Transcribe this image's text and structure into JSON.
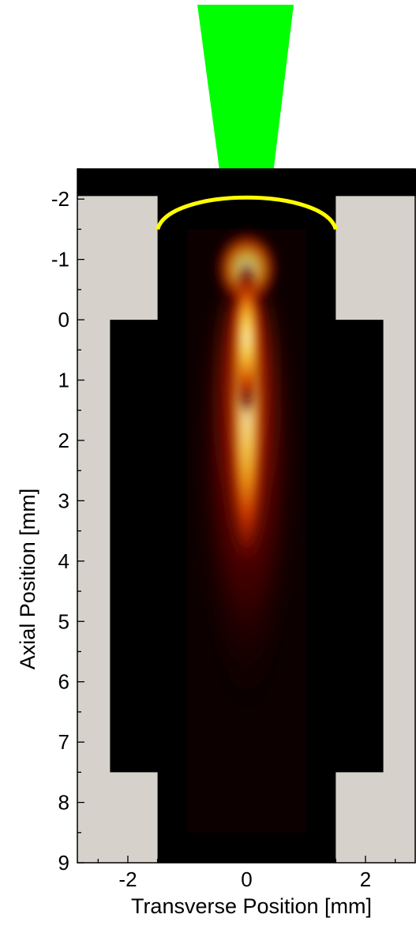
{
  "chart_data": {
    "type": "heatmap",
    "title": "",
    "xlabel": "Transverse Position [mm]",
    "ylabel": "Axial Position [mm]",
    "xlim": [
      -2.85,
      2.85
    ],
    "ylim": [
      9,
      -2.5
    ],
    "y_axis_inverted": true,
    "x_ticks": [
      -2,
      0,
      2
    ],
    "y_ticks": [
      -2,
      -1,
      0,
      1,
      2,
      3,
      4,
      5,
      6,
      7,
      8,
      9
    ],
    "colormap": "black-red-yellow-white",
    "grid": false,
    "legend": "none",
    "colors": {
      "background": "#000000",
      "channel_wall": "#d6d2cb",
      "window_arc": "#ffff00",
      "laser_beam": "#00ff00"
    },
    "plume": {
      "peak_axial_mm": 0,
      "peak_transverse_mm": 0,
      "visible_axial_range_mm": [
        -1.5,
        8.5
      ]
    },
    "channel_geometry_mm": {
      "upper_channel_halfwidth": 1.5,
      "upper_channel_axial_range": [
        -2.5,
        0
      ],
      "lower_chamber_halfwidth": 2.3,
      "lower_chamber_axial_range": [
        0,
        7.5
      ],
      "outlet_halfwidth": 1.5,
      "outlet_axial_range": [
        7.5,
        9
      ],
      "window_arc_ends": [
        [
          -1.5,
          -1.5
        ],
        [
          1.5,
          -1.5
        ]
      ],
      "window_arc_apex": [
        0,
        -2.05
      ]
    }
  }
}
